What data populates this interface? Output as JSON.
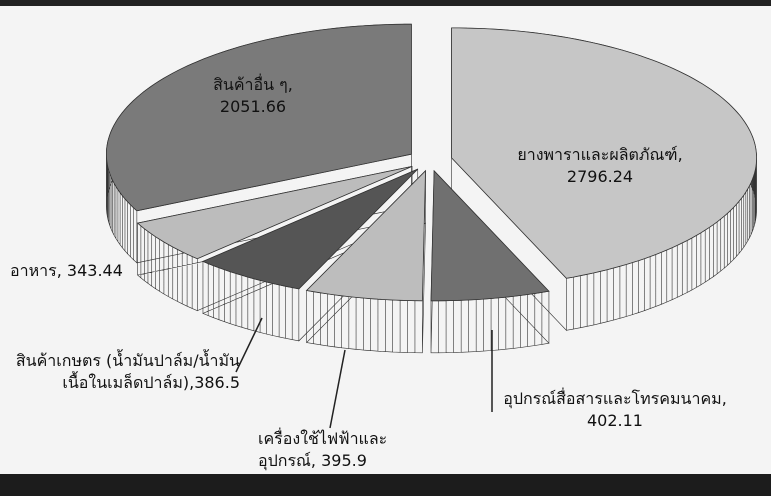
{
  "chart_data": {
    "type": "pie3d",
    "categories": [
      "ยางพาราและผลิตภัณฑ์,",
      "อุปกรณ์สื่อสารและโทรคมนาคม,",
      "เครื่องใช้ไฟฟ้าและอุปกรณ์,",
      "สินค้าเกษตร (น้ำมันปาล์ม/น้ำมันเนื้อในเมล็ดปาล์ม),",
      "อาหาร,",
      "สินค้าอื่น ๆ,"
    ],
    "values": [
      2796.24,
      402.11,
      395.9,
      386.5,
      343.44,
      2051.66
    ],
    "colors": [
      "#c6c6c6",
      "#707070",
      "#bdbdbd",
      "#555555",
      "#bcbcbc",
      "#7a7a7a"
    ]
  }
}
